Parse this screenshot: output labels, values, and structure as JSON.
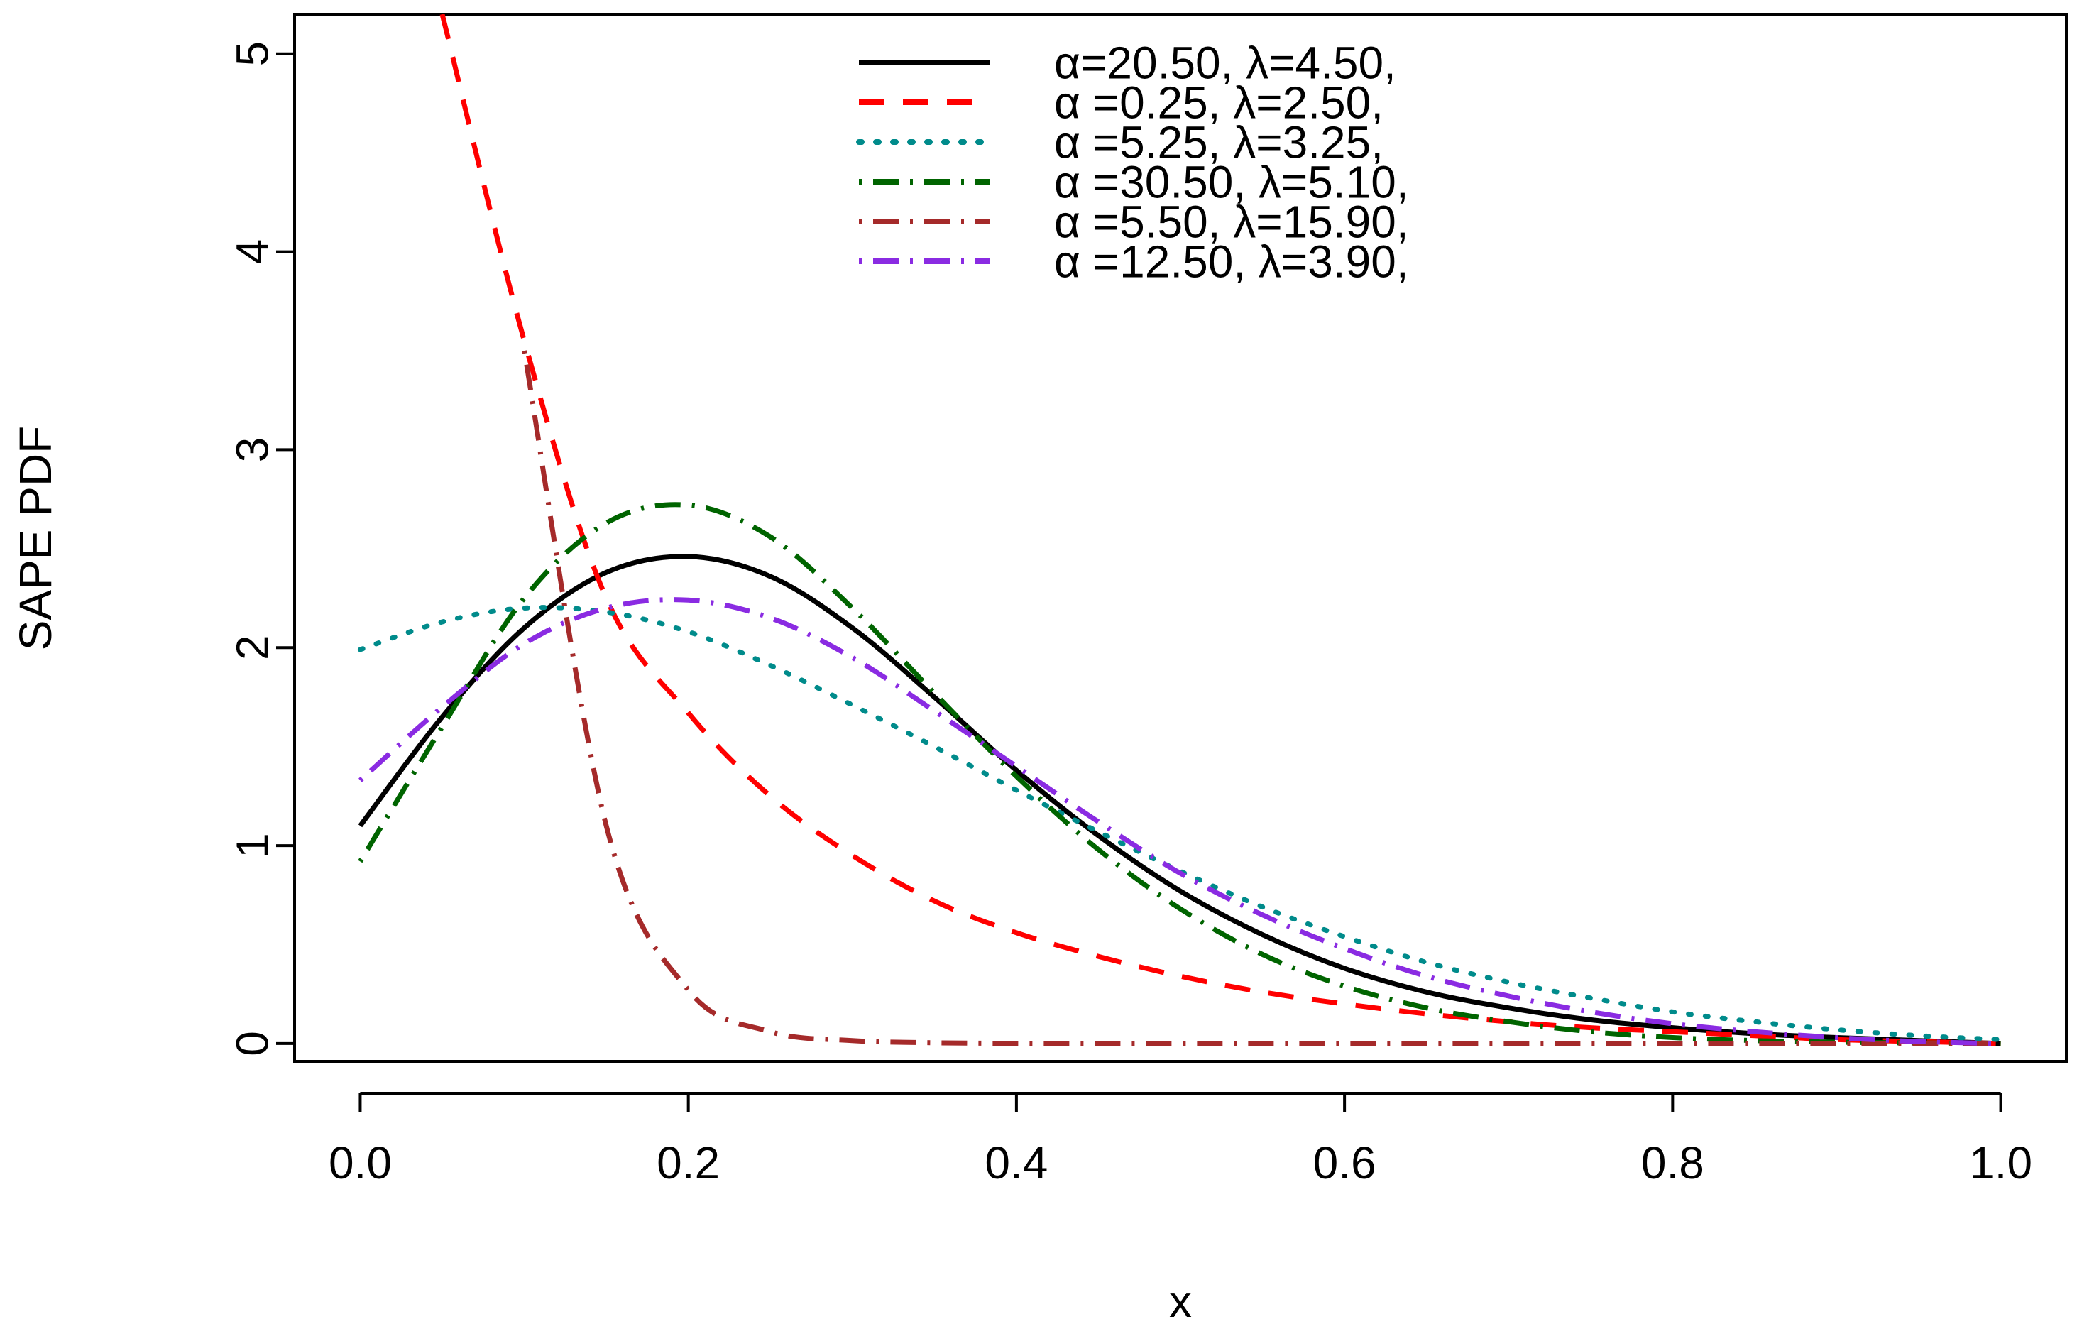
{
  "chart_data": {
    "type": "line",
    "title": "",
    "xlabel": "x",
    "ylabel": "SAPE PDF",
    "xlim": [
      -0.04,
      1.04
    ],
    "ylim": [
      -0.09,
      5.2
    ],
    "xticks": [
      0.0,
      0.2,
      0.4,
      0.6,
      0.8,
      1.0
    ],
    "xtick_labels": [
      "0.0",
      "0.2",
      "0.4",
      "0.6",
      "0.8",
      "1.0"
    ],
    "yticks": [
      0,
      1,
      2,
      3,
      4,
      5
    ],
    "ytick_labels": [
      "0",
      "1",
      "2",
      "3",
      "4",
      "5"
    ],
    "legend_position": "top-center",
    "x": [
      0.0,
      0.05,
      0.1,
      0.15,
      0.2,
      0.25,
      0.3,
      0.35,
      0.4,
      0.45,
      0.5,
      0.55,
      0.6,
      0.65,
      0.7,
      0.75,
      0.8,
      0.85,
      0.9,
      0.95,
      1.0
    ],
    "series": [
      {
        "name": "α=20.50, λ=4.50,",
        "color": "#000000",
        "dash": "solid",
        "values": [
          1.1,
          1.65,
          2.1,
          2.38,
          2.46,
          2.36,
          2.1,
          1.75,
          1.38,
          1.05,
          0.77,
          0.55,
          0.38,
          0.26,
          0.18,
          0.12,
          0.08,
          0.05,
          0.03,
          0.015,
          0.0
        ]
      },
      {
        "name": "α =0.25, λ=2.50,",
        "color": "#ff0000",
        "dash": "dashed",
        "values": [
          null,
          5.2,
          3.55,
          2.25,
          1.67,
          1.25,
          0.95,
          0.72,
          0.56,
          0.44,
          0.34,
          0.26,
          0.2,
          0.15,
          0.11,
          0.08,
          0.06,
          0.04,
          0.02,
          0.01,
          0.0
        ]
      },
      {
        "name": "α =5.25, λ=3.25,",
        "color": "#008b8b",
        "dash": "dotted",
        "values": [
          1.99,
          2.13,
          2.2,
          2.18,
          2.08,
          1.91,
          1.71,
          1.5,
          1.28,
          1.07,
          0.87,
          0.69,
          0.54,
          0.41,
          0.31,
          0.23,
          0.16,
          0.11,
          0.07,
          0.04,
          0.02
        ]
      },
      {
        "name": "α =30.50, λ=5.10,",
        "color": "#006400",
        "dash": "dotdash",
        "values": [
          0.92,
          1.6,
          2.25,
          2.63,
          2.72,
          2.56,
          2.2,
          1.77,
          1.35,
          0.98,
          0.68,
          0.45,
          0.29,
          0.18,
          0.11,
          0.06,
          0.03,
          0.015,
          0.007,
          0.003,
          0.0
        ]
      },
      {
        "name": "α =5.50, λ=15.90,",
        "color": "#a52a2a",
        "dash": "dotdash",
        "values": [
          null,
          null,
          3.5,
          1.1,
          0.27,
          0.06,
          0.015,
          0.004,
          0.001,
          0.0,
          0.0,
          0.0,
          0.0,
          0.0,
          0.0,
          0.0,
          0.0,
          0.0,
          0.0,
          0.0,
          0.0
        ]
      },
      {
        "name": "α =12.50, λ=3.90,",
        "color": "#8a2be2",
        "dash": "dotdash",
        "values": [
          1.33,
          1.7,
          2.02,
          2.2,
          2.24,
          2.15,
          1.95,
          1.68,
          1.4,
          1.12,
          0.86,
          0.65,
          0.48,
          0.34,
          0.24,
          0.16,
          0.1,
          0.06,
          0.03,
          0.01,
          0.0
        ]
      }
    ]
  }
}
